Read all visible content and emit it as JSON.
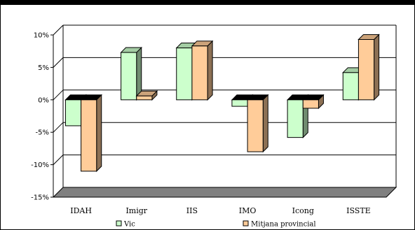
{
  "chart_data": {
    "type": "bar",
    "style": "3d-clustered-column",
    "title": "",
    "xlabel": "",
    "ylabel": "",
    "categories": [
      "IDAH",
      "Imigr",
      "IIS",
      "IMO",
      "Icong",
      "ISSTE"
    ],
    "y_ticks": [
      "10%",
      "5%",
      "0%",
      "-5%",
      "-10%",
      "-15%"
    ],
    "ylim": [
      -15,
      10
    ],
    "grid": true,
    "legend_position": "bottom",
    "series": [
      {
        "name": "Vic",
        "color": "#ccffcc",
        "values": [
          -4,
          7.3,
          8,
          -1,
          -5.8,
          4.2
        ]
      },
      {
        "name": "Mitjana provincial",
        "color": "#ffcc99",
        "values": [
          -11,
          0.6,
          8.3,
          -8,
          -1.3,
          9.3
        ]
      }
    ]
  },
  "colors": {
    "top_strip": "#000000",
    "floor": "#808080",
    "grid": "#000000"
  }
}
